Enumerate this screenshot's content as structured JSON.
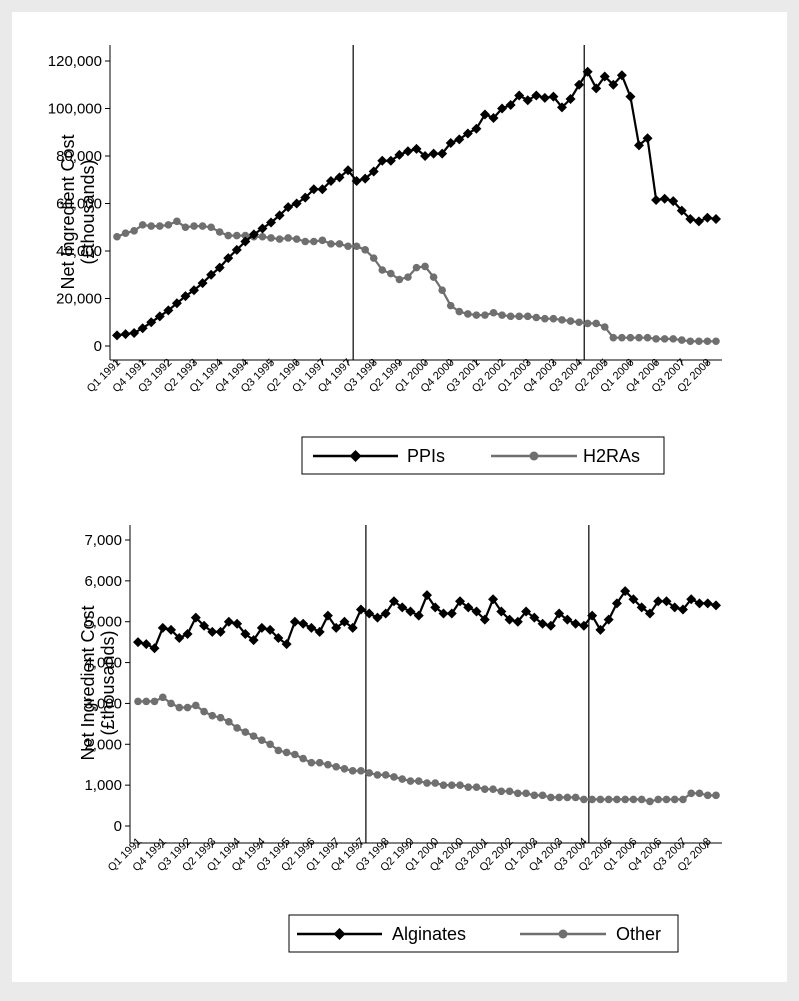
{
  "chart_data": [
    {
      "type": "line",
      "ylabel": [
        "Net Ingredient Cost",
        "(£thousands)"
      ],
      "ylim": [
        0,
        120000
      ],
      "yticks": [
        0,
        20000,
        40000,
        60000,
        80000,
        100000,
        120000
      ],
      "ytick_labels": [
        "0",
        "20,000",
        "40,000",
        "60,000",
        "80,000",
        "100,000",
        "120,000"
      ],
      "x_tick_labels": [
        "Q1 1991",
        "Q4 1991",
        "Q3 1992",
        "Q2 1993",
        "Q1 1994",
        "Q4 1994",
        "Q3 1995",
        "Q2 1996",
        "Q1 1997",
        "Q4 1997",
        "Q3 1998",
        "Q2 1999",
        "Q1 2000",
        "Q4 2000",
        "Q3 2001",
        "Q2 2002",
        "Q1 2003",
        "Q4 2003",
        "Q3 2004",
        "Q2 2005",
        "Q1 2006",
        "Q4 2006",
        "Q3 2007",
        "Q2 2008"
      ],
      "x_start": "Q1 1991",
      "vertical_lines": [
        "Q4 1997",
        "Q3 2004"
      ],
      "grid": false,
      "legend_position": "bottom",
      "series": [
        {
          "name": "PPIs",
          "color": "#000000",
          "marker": "diamond",
          "values": [
            4500,
            5000,
            5500,
            7500,
            10000,
            12500,
            15000,
            18000,
            21000,
            23500,
            26500,
            30000,
            33000,
            37000,
            40500,
            44000,
            47000,
            49500,
            52000,
            55000,
            58500,
            60000,
            62500,
            66000,
            66000,
            69500,
            71000,
            74000,
            69500,
            70500,
            73500,
            78000,
            78000,
            80500,
            82000,
            83000,
            80000,
            81000,
            81000,
            85500,
            87000,
            89500,
            91500,
            97500,
            96000,
            100000,
            101500,
            105500,
            103500,
            105500,
            104500,
            105000,
            100500,
            104000,
            110000,
            115500,
            108500,
            113500,
            110000,
            114000,
            105000,
            84500,
            87500,
            61500,
            62000,
            61000,
            57000,
            53500,
            52500,
            54000,
            53500
          ]
        },
        {
          "name": "H2RAs",
          "color": "#6f6f6f",
          "marker": "circle",
          "values": [
            46000,
            47500,
            48500,
            51000,
            50500,
            50500,
            51000,
            52500,
            50000,
            50500,
            50500,
            50000,
            48000,
            46500,
            46500,
            46500,
            46000,
            46000,
            45500,
            45000,
            45500,
            45000,
            44000,
            44000,
            44500,
            43000,
            43000,
            42000,
            42000,
            40500,
            37000,
            32000,
            30500,
            28000,
            29000,
            33000,
            33500,
            29000,
            23500,
            17000,
            14500,
            13500,
            13000,
            13000,
            14000,
            13000,
            12500,
            12500,
            12500,
            12000,
            11500,
            11500,
            11000,
            10500,
            10000,
            9500,
            9500,
            8000,
            3500,
            3500,
            3500,
            3500,
            3500,
            3000,
            3000,
            3000,
            2500,
            2000,
            2000,
            2000,
            2000
          ]
        }
      ]
    },
    {
      "type": "line",
      "ylabel": [
        "Net Ingredient Cost",
        "(£thousands)"
      ],
      "ylim": [
        0,
        7000
      ],
      "yticks": [
        0,
        1000,
        2000,
        3000,
        4000,
        5000,
        6000,
        7000
      ],
      "ytick_labels": [
        "0",
        "1,000",
        "2,000",
        "3,000",
        "4,000",
        "5,000",
        "6,000",
        "7,000"
      ],
      "x_tick_labels": [
        "Q1 1991",
        "Q4 1991",
        "Q3 1992",
        "Q2 1993",
        "Q1 1994",
        "Q4 1994",
        "Q3 1995",
        "Q2 1996",
        "Q1 1997",
        "Q4 1997",
        "Q3 1998",
        "Q2 1999",
        "Q1 2000",
        "Q4 2000",
        "Q3 2001",
        "Q2 2002",
        "Q1 2003",
        "Q4 2003",
        "Q3 2004",
        "Q2 2005",
        "Q1 2006",
        "Q4 2006",
        "Q3 2007",
        "Q2 2008"
      ],
      "x_start": "Q1 1991",
      "vertical_lines": [
        "Q4 1997",
        "Q3 2004"
      ],
      "grid": false,
      "legend_position": "bottom",
      "series": [
        {
          "name": "Alginates",
          "color": "#000000",
          "marker": "diamond",
          "values": [
            4500,
            4450,
            4350,
            4850,
            4800,
            4600,
            4700,
            5100,
            4900,
            4750,
            4750,
            5000,
            4950,
            4700,
            4550,
            4850,
            4800,
            4600,
            4450,
            5000,
            4950,
            4850,
            4750,
            5150,
            4850,
            5000,
            4850,
            5300,
            5200,
            5100,
            5200,
            5500,
            5350,
            5250,
            5150,
            5650,
            5350,
            5200,
            5200,
            5500,
            5350,
            5250,
            5050,
            5550,
            5250,
            5050,
            5000,
            5250,
            5100,
            4950,
            4900,
            5200,
            5050,
            4950,
            4900,
            5150,
            4800,
            5050,
            5450,
            5750,
            5550,
            5350,
            5200,
            5500,
            5500,
            5350,
            5300,
            5550,
            5450,
            5450,
            5400
          ]
        },
        {
          "name": "Other",
          "color": "#6f6f6f",
          "marker": "circle",
          "values": [
            3050,
            3050,
            3050,
            3150,
            3000,
            2900,
            2900,
            2950,
            2800,
            2700,
            2650,
            2550,
            2400,
            2300,
            2200,
            2100,
            2000,
            1850,
            1800,
            1750,
            1650,
            1550,
            1550,
            1500,
            1450,
            1400,
            1350,
            1350,
            1300,
            1250,
            1250,
            1200,
            1150,
            1100,
            1100,
            1050,
            1050,
            1000,
            1000,
            1000,
            950,
            950,
            900,
            900,
            850,
            850,
            800,
            800,
            750,
            750,
            700,
            700,
            700,
            700,
            650,
            650,
            650,
            650,
            650,
            650,
            650,
            650,
            600,
            650,
            650,
            650,
            650,
            800,
            800,
            750,
            750
          ]
        }
      ]
    }
  ]
}
